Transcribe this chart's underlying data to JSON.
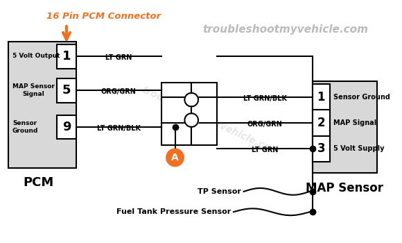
{
  "title": "16 Pin PCM Connector",
  "watermark": "troubleshootmyvehicle.com",
  "bg_color": "#ffffff",
  "orange": "#f07020",
  "pcm_label": "PCM",
  "map_label": "MAP Sensor",
  "pcm_pins": [
    "1",
    "5",
    "9"
  ],
  "pcm_signals_left": [
    "5 Volt Output",
    "MAP Sensor\nSignal",
    "Sensor\nGround"
  ],
  "map_pins": [
    "1",
    "2",
    "3"
  ],
  "map_signals_right": [
    "Sensor Ground",
    "MAP Signal",
    "5 Volt Supply"
  ],
  "wire_labels_left": [
    "LT GRN",
    "ORG/GRN",
    "LT GRN/BLK"
  ],
  "wire_labels_right": [
    "LT GRN/BLK",
    "ORG/GRN",
    "LT GRN"
  ],
  "bottom_labels": [
    "TP Sensor",
    "Fuel Tank Pressure Sensor"
  ],
  "connector_label": "A"
}
